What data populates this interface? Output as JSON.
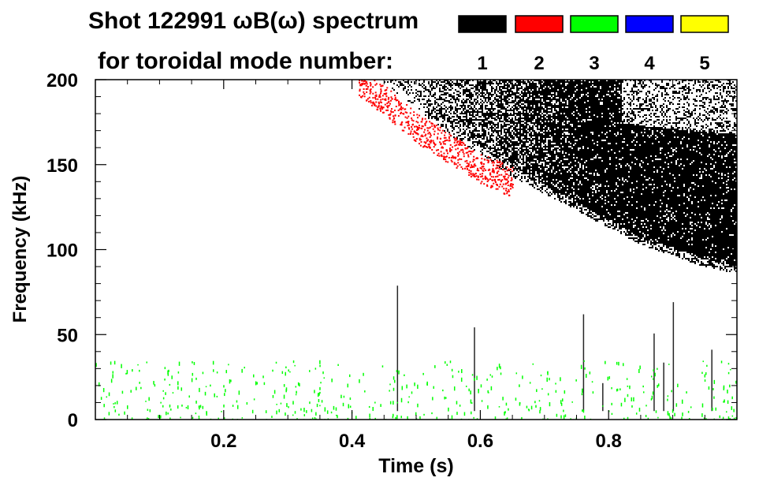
{
  "chart_data": {
    "type": "heatmap",
    "title_line1": "Shot 122991 ωB(ω) spectrum",
    "title_line2": "for toroidal mode number:",
    "xlabel": "Time (s)",
    "ylabel": "Frequency (kHz)",
    "xlim": [
      0.0,
      1.0
    ],
    "ylim": [
      0,
      200
    ],
    "x_ticks": [
      0.2,
      0.4,
      0.6,
      0.8
    ],
    "x_tick_labels": [
      "0.2",
      "0.4",
      "0.6",
      "0.8"
    ],
    "y_ticks": [
      0,
      50,
      100,
      150,
      200
    ],
    "y_tick_labels": [
      "0",
      "50",
      "100",
      "150",
      "200"
    ],
    "legend": [
      {
        "mode": "1",
        "color": "#000000"
      },
      {
        "mode": "2",
        "color": "#ff0000"
      },
      {
        "mode": "3",
        "color": "#00ff00"
      },
      {
        "mode": "4",
        "color": "#0000ff"
      },
      {
        "mode": "5",
        "color": "#ffff00"
      }
    ],
    "regions": [
      {
        "mode": "1",
        "description": "broadband activity above a frequency chirping down from 200 kHz at ~0.45 s to ~90 kHz at 1.0 s",
        "lower_boundary": [
          [
            0.45,
            200
          ],
          [
            0.55,
            170
          ],
          [
            0.65,
            145
          ],
          [
            0.75,
            125
          ],
          [
            0.85,
            105
          ],
          [
            0.95,
            92
          ],
          [
            1.0,
            88
          ]
        ]
      },
      {
        "mode": "2",
        "description": "chirping band near the lower edge of mode 1 activity",
        "points": [
          [
            0.41,
            200
          ],
          [
            0.45,
            188
          ],
          [
            0.5,
            172
          ],
          [
            0.55,
            160
          ],
          [
            0.6,
            148
          ],
          [
            0.65,
            140
          ]
        ]
      },
      {
        "mode": "3",
        "description": "sparse low-frequency activity 0-35 kHz over 0.0-1.0 s",
        "frequency_range": [
          0,
          35
        ]
      }
    ]
  }
}
